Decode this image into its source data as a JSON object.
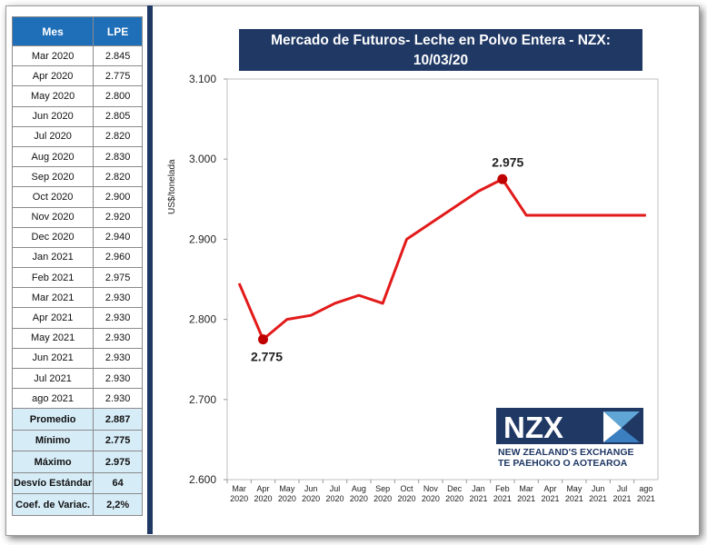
{
  "table": {
    "headers": [
      "Mes",
      "LPE"
    ],
    "rows": [
      [
        "Mar 2020",
        "2.845"
      ],
      [
        "Apr 2020",
        "2.775"
      ],
      [
        "May 2020",
        "2.800"
      ],
      [
        "Jun 2020",
        "2.805"
      ],
      [
        "Jul 2020",
        "2.820"
      ],
      [
        "Aug 2020",
        "2.830"
      ],
      [
        "Sep 2020",
        "2.820"
      ],
      [
        "Oct 2020",
        "2.900"
      ],
      [
        "Nov 2020",
        "2.920"
      ],
      [
        "Dec 2020",
        "2.940"
      ],
      [
        "Jan 2021",
        "2.960"
      ],
      [
        "Feb 2021",
        "2.975"
      ],
      [
        "Mar 2021",
        "2.930"
      ],
      [
        "Apr 2021",
        "2.930"
      ],
      [
        "May 2021",
        "2.930"
      ],
      [
        "Jun 2021",
        "2.930"
      ],
      [
        "Jul 2021",
        "2.930"
      ],
      [
        "ago 2021",
        "2.930"
      ]
    ],
    "stats": [
      [
        "Promedio",
        "2.887"
      ],
      [
        "Mínimo",
        "2.775"
      ],
      [
        "Máximo",
        "2.975"
      ],
      [
        "Desvío Estándar",
        "64"
      ],
      [
        "Coef. de Variac.",
        "2,2%"
      ]
    ]
  },
  "chart_data": {
    "type": "line",
    "title": "Mercado de Futuros- Leche en Polvo Entera - NZX:",
    "subtitle": "10/03/20",
    "ylabel": "US$/tonelada",
    "xlabel": "",
    "categories": [
      [
        "Mar",
        "2020"
      ],
      [
        "Apr",
        "2020"
      ],
      [
        "May",
        "2020"
      ],
      [
        "Jun",
        "2020"
      ],
      [
        "Jul",
        "2020"
      ],
      [
        "Aug",
        "2020"
      ],
      [
        "Sep",
        "2020"
      ],
      [
        "Oct",
        "2020"
      ],
      [
        "Nov",
        "2020"
      ],
      [
        "Dec",
        "2020"
      ],
      [
        "Jan",
        "2021"
      ],
      [
        "Feb",
        "2021"
      ],
      [
        "Mar",
        "2021"
      ],
      [
        "Apr",
        "2021"
      ],
      [
        "May",
        "2021"
      ],
      [
        "Jun",
        "2021"
      ],
      [
        "Jul",
        "2021"
      ],
      [
        "ago",
        "2021"
      ]
    ],
    "values": [
      2845,
      2775,
      2800,
      2805,
      2820,
      2830,
      2820,
      2900,
      2920,
      2940,
      2960,
      2975,
      2930,
      2930,
      2930,
      2930,
      2930,
      2930
    ],
    "ylim": [
      2600,
      3100
    ],
    "yticks": [
      2600,
      2700,
      2800,
      2900,
      3000,
      3100
    ],
    "ytick_labels": [
      "2.600",
      "2.700",
      "2.800",
      "2.900",
      "3.000",
      "3.100"
    ],
    "annotations": [
      {
        "index": 1,
        "label": "2.775",
        "position": "below"
      },
      {
        "index": 11,
        "label": "2.975",
        "position": "above"
      }
    ],
    "line_color": "#e31a1a",
    "marker_color": "#c00000",
    "grid": false
  },
  "logo": {
    "name": "NZX",
    "line1": "NEW ZEALAND'S EXCHANGE",
    "line2": "TE PAEHOKO O AOTEAROA"
  }
}
